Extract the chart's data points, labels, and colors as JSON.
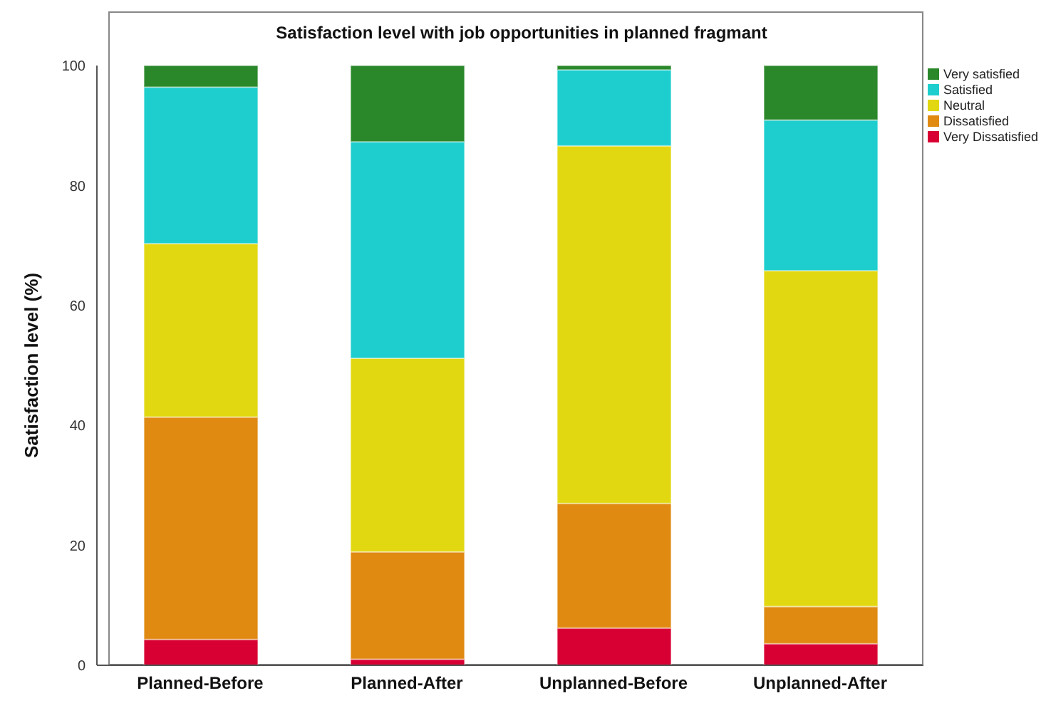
{
  "chart_data": {
    "type": "bar",
    "title": "Satisfaction level with job opportunities in planned fragmant",
    "ylabel": "Satisfaction level (%)",
    "categories": [
      "Planned-Before",
      "Planned-After",
      "Unplanned-Before",
      "Unplanned-After"
    ],
    "stacked": true,
    "ylim": [
      0,
      100
    ],
    "yticks": [
      0,
      20,
      40,
      60,
      80,
      100
    ],
    "grid": false,
    "legend": "top right",
    "series": [
      {
        "name": "Very Dissatisfied",
        "color": "#d80032",
        "values": [
          4.3,
          1.0,
          6.2,
          3.6
        ]
      },
      {
        "name": "Dissatisfied",
        "color": "#e08a12",
        "values": [
          37.1,
          17.9,
          20.8,
          6.2
        ]
      },
      {
        "name": "Neutral",
        "color": "#e2d811",
        "values": [
          28.9,
          32.3,
          59.6,
          56.0
        ]
      },
      {
        "name": "Satisfied",
        "color": "#1ecece",
        "values": [
          26.1,
          36.1,
          12.7,
          25.1
        ]
      },
      {
        "name": "Very satisfied",
        "color": "#2a882a",
        "values": [
          3.6,
          12.7,
          0.7,
          9.1
        ]
      }
    ]
  }
}
